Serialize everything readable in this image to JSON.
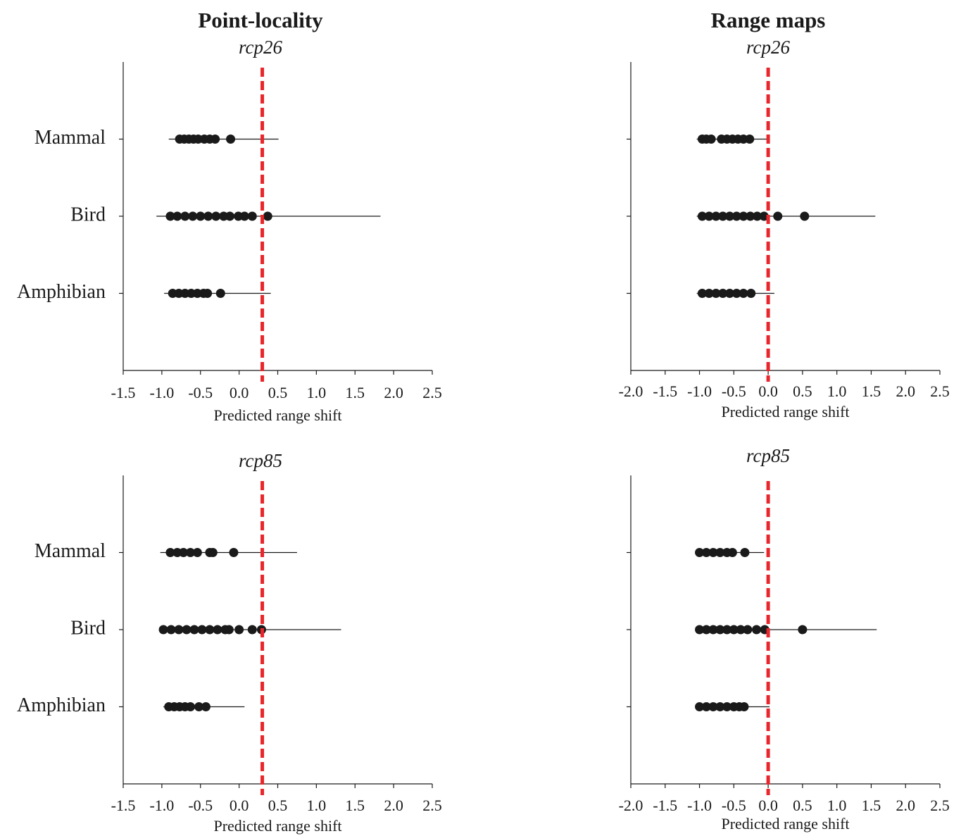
{
  "chart_data": [
    {
      "type": "strip",
      "title": "Point-locality",
      "subtitle": "rcp26",
      "xlabel": "Predicted range shift",
      "categories": [
        "Mammal",
        "Bird",
        "Amphibian"
      ],
      "points": [
        [
          -0.77,
          -0.71,
          -0.65,
          -0.59,
          -0.53,
          -0.45,
          -0.38,
          -0.31,
          -0.11
        ],
        [
          -0.89,
          -0.8,
          -0.7,
          -0.6,
          -0.5,
          -0.4,
          -0.3,
          -0.2,
          -0.12,
          -0.01,
          0.07,
          0.17,
          0.37
        ],
        [
          -0.86,
          -0.78,
          -0.7,
          -0.62,
          -0.54,
          -0.46,
          -0.41,
          -0.24
        ]
      ],
      "whiskers": [
        [
          -0.91,
          0.51
        ],
        [
          -1.07,
          1.83
        ],
        [
          -0.97,
          0.41
        ]
      ],
      "reference_line": 0.3,
      "reference_color": "#e8262b",
      "point_color": "#1a1a1a",
      "xlim": [
        -1.5,
        2.5
      ],
      "xticks": [
        -1.5,
        {
          "value": -1,
          "label": "-1.0"
        },
        -0.5,
        {
          "value": 0,
          "label": "0.0"
        },
        0.5,
        {
          "value": 1,
          "label": "1.0"
        },
        1.5,
        {
          "value": 2,
          "label": "2.0"
        },
        2.5
      ]
    },
    {
      "type": "strip",
      "title": "Range maps",
      "subtitle": "rcp26",
      "xlabel": "Predicted range shift",
      "categories": [
        "",
        "",
        ""
      ],
      "points": [
        [
          -0.96,
          -0.9,
          -0.83,
          -0.68,
          -0.6,
          -0.52,
          -0.44,
          -0.36,
          -0.27
        ],
        [
          -0.96,
          -0.86,
          -0.76,
          -0.66,
          -0.56,
          -0.46,
          -0.36,
          -0.26,
          -0.16,
          -0.06,
          0.14,
          0.53
        ],
        [
          -0.96,
          -0.86,
          -0.76,
          -0.66,
          -0.56,
          -0.46,
          -0.36,
          -0.25
        ]
      ],
      "whiskers": [
        [
          -1.04,
          0.02
        ],
        [
          -1.04,
          1.56
        ],
        [
          -1.04,
          0.09
        ]
      ],
      "reference_line": 0,
      "reference_color": "#e8262b",
      "point_color": "#1a1a1a",
      "xlim": [
        -2,
        2.5
      ],
      "xticks": [
        {
          "value": -2,
          "label": "-2.0"
        },
        -1.5,
        {
          "value": -1,
          "label": "-1.0"
        },
        -0.5,
        {
          "value": 0,
          "label": "0.0"
        },
        0.5,
        {
          "value": 1,
          "label": "1.0"
        },
        1.5,
        {
          "value": 2,
          "label": "2.0"
        },
        2.5
      ]
    },
    {
      "type": "strip",
      "subtitle": "rcp85",
      "xlabel": "Predicted range shift",
      "categories": [
        "Mammal",
        "Bird",
        "Amphibian"
      ],
      "points": [
        [
          -0.89,
          -0.8,
          -0.72,
          -0.63,
          -0.54,
          -0.38,
          -0.34,
          -0.07
        ],
        [
          -0.98,
          -0.88,
          -0.78,
          -0.68,
          -0.58,
          -0.48,
          -0.38,
          -0.28,
          -0.18,
          -0.13,
          0.0,
          0.17,
          0.29
        ],
        [
          -0.91,
          -0.84,
          -0.77,
          -0.7,
          -0.63,
          -0.52,
          -0.43
        ]
      ],
      "whiskers": [
        [
          -1.02,
          0.75
        ],
        [
          -1.02,
          1.32
        ],
        [
          -0.98,
          0.07
        ]
      ],
      "reference_line": 0.3,
      "reference_color": "#e8262b",
      "point_color": "#1a1a1a",
      "xlim": [
        -1.5,
        2.5
      ],
      "xticks": [
        -1.5,
        {
          "value": -1,
          "label": "-1.0"
        },
        -0.5,
        {
          "value": 0,
          "label": "0.0"
        },
        0.5,
        {
          "value": 1,
          "label": "1.0"
        },
        1.5,
        {
          "value": 2,
          "label": "2.0"
        },
        2.5
      ]
    },
    {
      "type": "strip",
      "subtitle": "rcp85",
      "xlabel": "Predicted range shift",
      "categories": [
        "",
        "",
        ""
      ],
      "points": [
        [
          -1.0,
          -0.9,
          -0.8,
          -0.7,
          -0.6,
          -0.52,
          -0.34
        ],
        [
          -1.0,
          -0.9,
          -0.8,
          -0.7,
          -0.6,
          -0.5,
          -0.4,
          -0.3,
          -0.17,
          -0.05,
          0.5
        ],
        [
          -1.0,
          -0.9,
          -0.8,
          -0.7,
          -0.6,
          -0.5,
          -0.42,
          -0.35
        ]
      ],
      "whiskers": [
        [
          -1.06,
          -0.06
        ],
        [
          -1.06,
          1.58
        ],
        [
          -1.06,
          0.02
        ]
      ],
      "reference_line": 0,
      "reference_color": "#e8262b",
      "point_color": "#1a1a1a",
      "xlim": [
        -2,
        2.5
      ],
      "xticks": [
        {
          "value": -2,
          "label": "-2.0"
        },
        -1.5,
        {
          "value": -1,
          "label": "-1.0"
        },
        -0.5,
        {
          "value": 0,
          "label": "0.0"
        },
        0.5,
        {
          "value": 1,
          "label": "1.0"
        },
        1.5,
        {
          "value": 2,
          "label": "2.0"
        },
        2.5
      ]
    }
  ]
}
